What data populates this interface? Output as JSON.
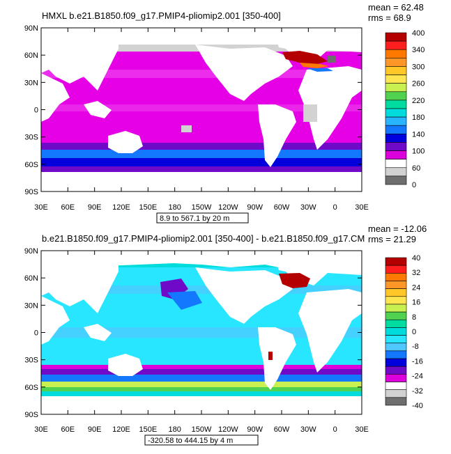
{
  "panels": [
    {
      "title": "HMXL  b.e21.B1850.f09_g17.PMIP4-pliomip2.001  [350-400]",
      "mean_text": "mean = 62.48",
      "rms_text": "rms = 68.9",
      "range_text": "8.9 to 567.1 by 20 m",
      "colorbar": {
        "labels": [
          "400",
          "340",
          "300",
          "260",
          "220",
          "180",
          "140",
          "100",
          "60",
          "0"
        ],
        "colors": [
          "#b40000",
          "#ff1e1e",
          "#ff7800",
          "#ff9628",
          "#ffc828",
          "#ffe650",
          "#c8f050",
          "#50d250",
          "#00dca0",
          "#00dcdc",
          "#28b4ff",
          "#1478ff",
          "#0000dc",
          "#6e0ac8",
          "#dc00dc",
          "#ffffff",
          "#d2d2d2",
          "#6e6e6e"
        ]
      },
      "ocean_color": "#e600e6"
    },
    {
      "title": "b.e21.B1850.f09_g17.PMIP4-pliomip2.001  [350-400]  -  b.e21.B1850.f09_g17.CM",
      "mean_text": "mean = -12.06",
      "rms_text": "rms = 21.29",
      "range_text": "-320.58 to 444.15 by 4 m",
      "colorbar": {
        "labels": [
          "40",
          "32",
          "24",
          "16",
          "8",
          "0",
          "-8",
          "-16",
          "-24",
          "-32",
          "-40"
        ],
        "colors": [
          "#b40000",
          "#ff1e1e",
          "#ff7800",
          "#ff9628",
          "#ffc828",
          "#ffe650",
          "#c8f050",
          "#50d250",
          "#00dca0",
          "#00dcdc",
          "#28e6ff",
          "#50c8ff",
          "#1478ff",
          "#0000dc",
          "#6e0ac8",
          "#dc00dc",
          "#ffffff",
          "#d2d2d2",
          "#6e6e6e"
        ]
      },
      "ocean_color": "#28e6ff"
    }
  ],
  "lat_ticks": [
    "90N",
    "60N",
    "30N",
    "0",
    "30S",
    "60S",
    "90S"
  ],
  "lon_ticks": [
    "30E",
    "60E",
    "90E",
    "120E",
    "150E",
    "180",
    "150W",
    "120W",
    "90W",
    "60W",
    "30W",
    "0",
    "30E"
  ]
}
